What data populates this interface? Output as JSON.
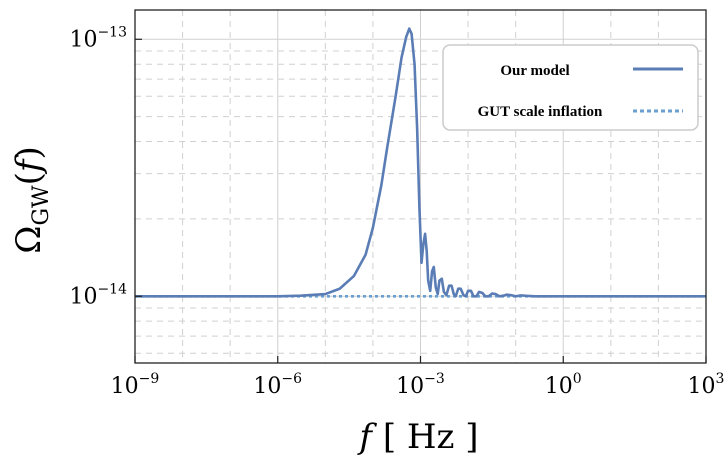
{
  "chart_data": {
    "type": "line",
    "x_scale": "log",
    "y_scale": "log",
    "xlim": [
      1e-09,
      1000
    ],
    "ylim": [
      5.5e-15,
      1.3e-13
    ],
    "x_ticks": [
      1e-09,
      1e-06,
      0.001,
      1,
      1000
    ],
    "x_tick_labels": [
      {
        "base": "10",
        "exp": "−9"
      },
      {
        "base": "10",
        "exp": "−6"
      },
      {
        "base": "10",
        "exp": "−3"
      },
      {
        "base": "10",
        "exp": "0"
      },
      {
        "base": "10",
        "exp": "3"
      }
    ],
    "y_ticks": [
      1e-14,
      1e-13
    ],
    "y_tick_labels": [
      {
        "base": "10",
        "exp": "−14"
      },
      {
        "base": "10",
        "exp": "−13"
      }
    ],
    "xlabel": {
      "var": "f",
      "unit": "Hz"
    },
    "ylabel": {
      "symbol": "Ω",
      "sub": "GW",
      "arg": "f"
    },
    "grid": true,
    "legend_position": "top-right",
    "colors": {
      "model": "#5b7db5",
      "baseline": "#6a9fd0",
      "grid": "#d0d0d0"
    },
    "series": [
      {
        "name": "Our model",
        "style": "solid",
        "points": [
          [
            1e-09,
            1e-14
          ],
          [
            1e-06,
            1e-14
          ],
          [
            3e-06,
            1.005e-14
          ],
          [
            1e-05,
            1.02e-14
          ],
          [
            2e-05,
            1.07e-14
          ],
          [
            4e-05,
            1.2e-14
          ],
          [
            7e-05,
            1.45e-14
          ],
          [
            0.0001,
            1.85e-14
          ],
          [
            0.00015,
            2.7e-14
          ],
          [
            0.0002,
            3.8e-14
          ],
          [
            0.0003,
            6e-14
          ],
          [
            0.0004,
            8.5e-14
          ],
          [
            0.0005,
            1.02e-13
          ],
          [
            0.00058,
            1.1e-13
          ],
          [
            0.00065,
            1.05e-13
          ],
          [
            0.00075,
            8e-14
          ],
          [
            0.00085,
            4.5e-14
          ],
          [
            0.00095,
            2.2e-14
          ],
          [
            0.00105,
            1.35e-14
          ],
          [
            0.00115,
            1.6e-14
          ],
          [
            0.00125,
            1.75e-14
          ],
          [
            0.00135,
            1.5e-14
          ],
          [
            0.00145,
            1.15e-14
          ],
          [
            0.0016,
            1.05e-14
          ],
          [
            0.00175,
            1.25e-14
          ],
          [
            0.0019,
            1.3e-14
          ],
          [
            0.0021,
            1.08e-14
          ],
          [
            0.0023,
            1.02e-14
          ],
          [
            0.0025,
            1.15e-14
          ],
          [
            0.0028,
            1.17e-14
          ],
          [
            0.0031,
            1.04e-14
          ],
          [
            0.0035,
            1.01e-14
          ],
          [
            0.004,
            1.1e-14
          ],
          [
            0.0045,
            1.1e-14
          ],
          [
            0.005,
            1.02e-14
          ],
          [
            0.0055,
            1e-14
          ],
          [
            0.0062,
            1.07e-14
          ],
          [
            0.007,
            1.07e-14
          ],
          [
            0.008,
            1.01e-14
          ],
          [
            0.009,
            1e-14
          ],
          [
            0.01,
            1.05e-14
          ],
          [
            0.0115,
            1.05e-14
          ],
          [
            0.013,
            1e-14
          ],
          [
            0.015,
            1e-14
          ],
          [
            0.017,
            1.04e-14
          ],
          [
            0.02,
            1.03e-14
          ],
          [
            0.023,
            1e-14
          ],
          [
            0.027,
            1e-14
          ],
          [
            0.032,
            1.025e-14
          ],
          [
            0.038,
            1.02e-14
          ],
          [
            0.045,
            1e-14
          ],
          [
            0.055,
            1.005e-14
          ],
          [
            0.065,
            1.015e-14
          ],
          [
            0.08,
            1.01e-14
          ],
          [
            0.1,
            1e-14
          ],
          [
            0.13,
            1.008e-14
          ],
          [
            0.17,
            1.004e-14
          ],
          [
            0.25,
            1e-14
          ],
          [
            1,
            1e-14
          ],
          [
            1000,
            1e-14
          ]
        ]
      },
      {
        "name": "GUT scale inflation",
        "style": "dotted",
        "points": [
          [
            1e-09,
            1e-14
          ],
          [
            1000,
            1e-14
          ]
        ]
      }
    ]
  }
}
